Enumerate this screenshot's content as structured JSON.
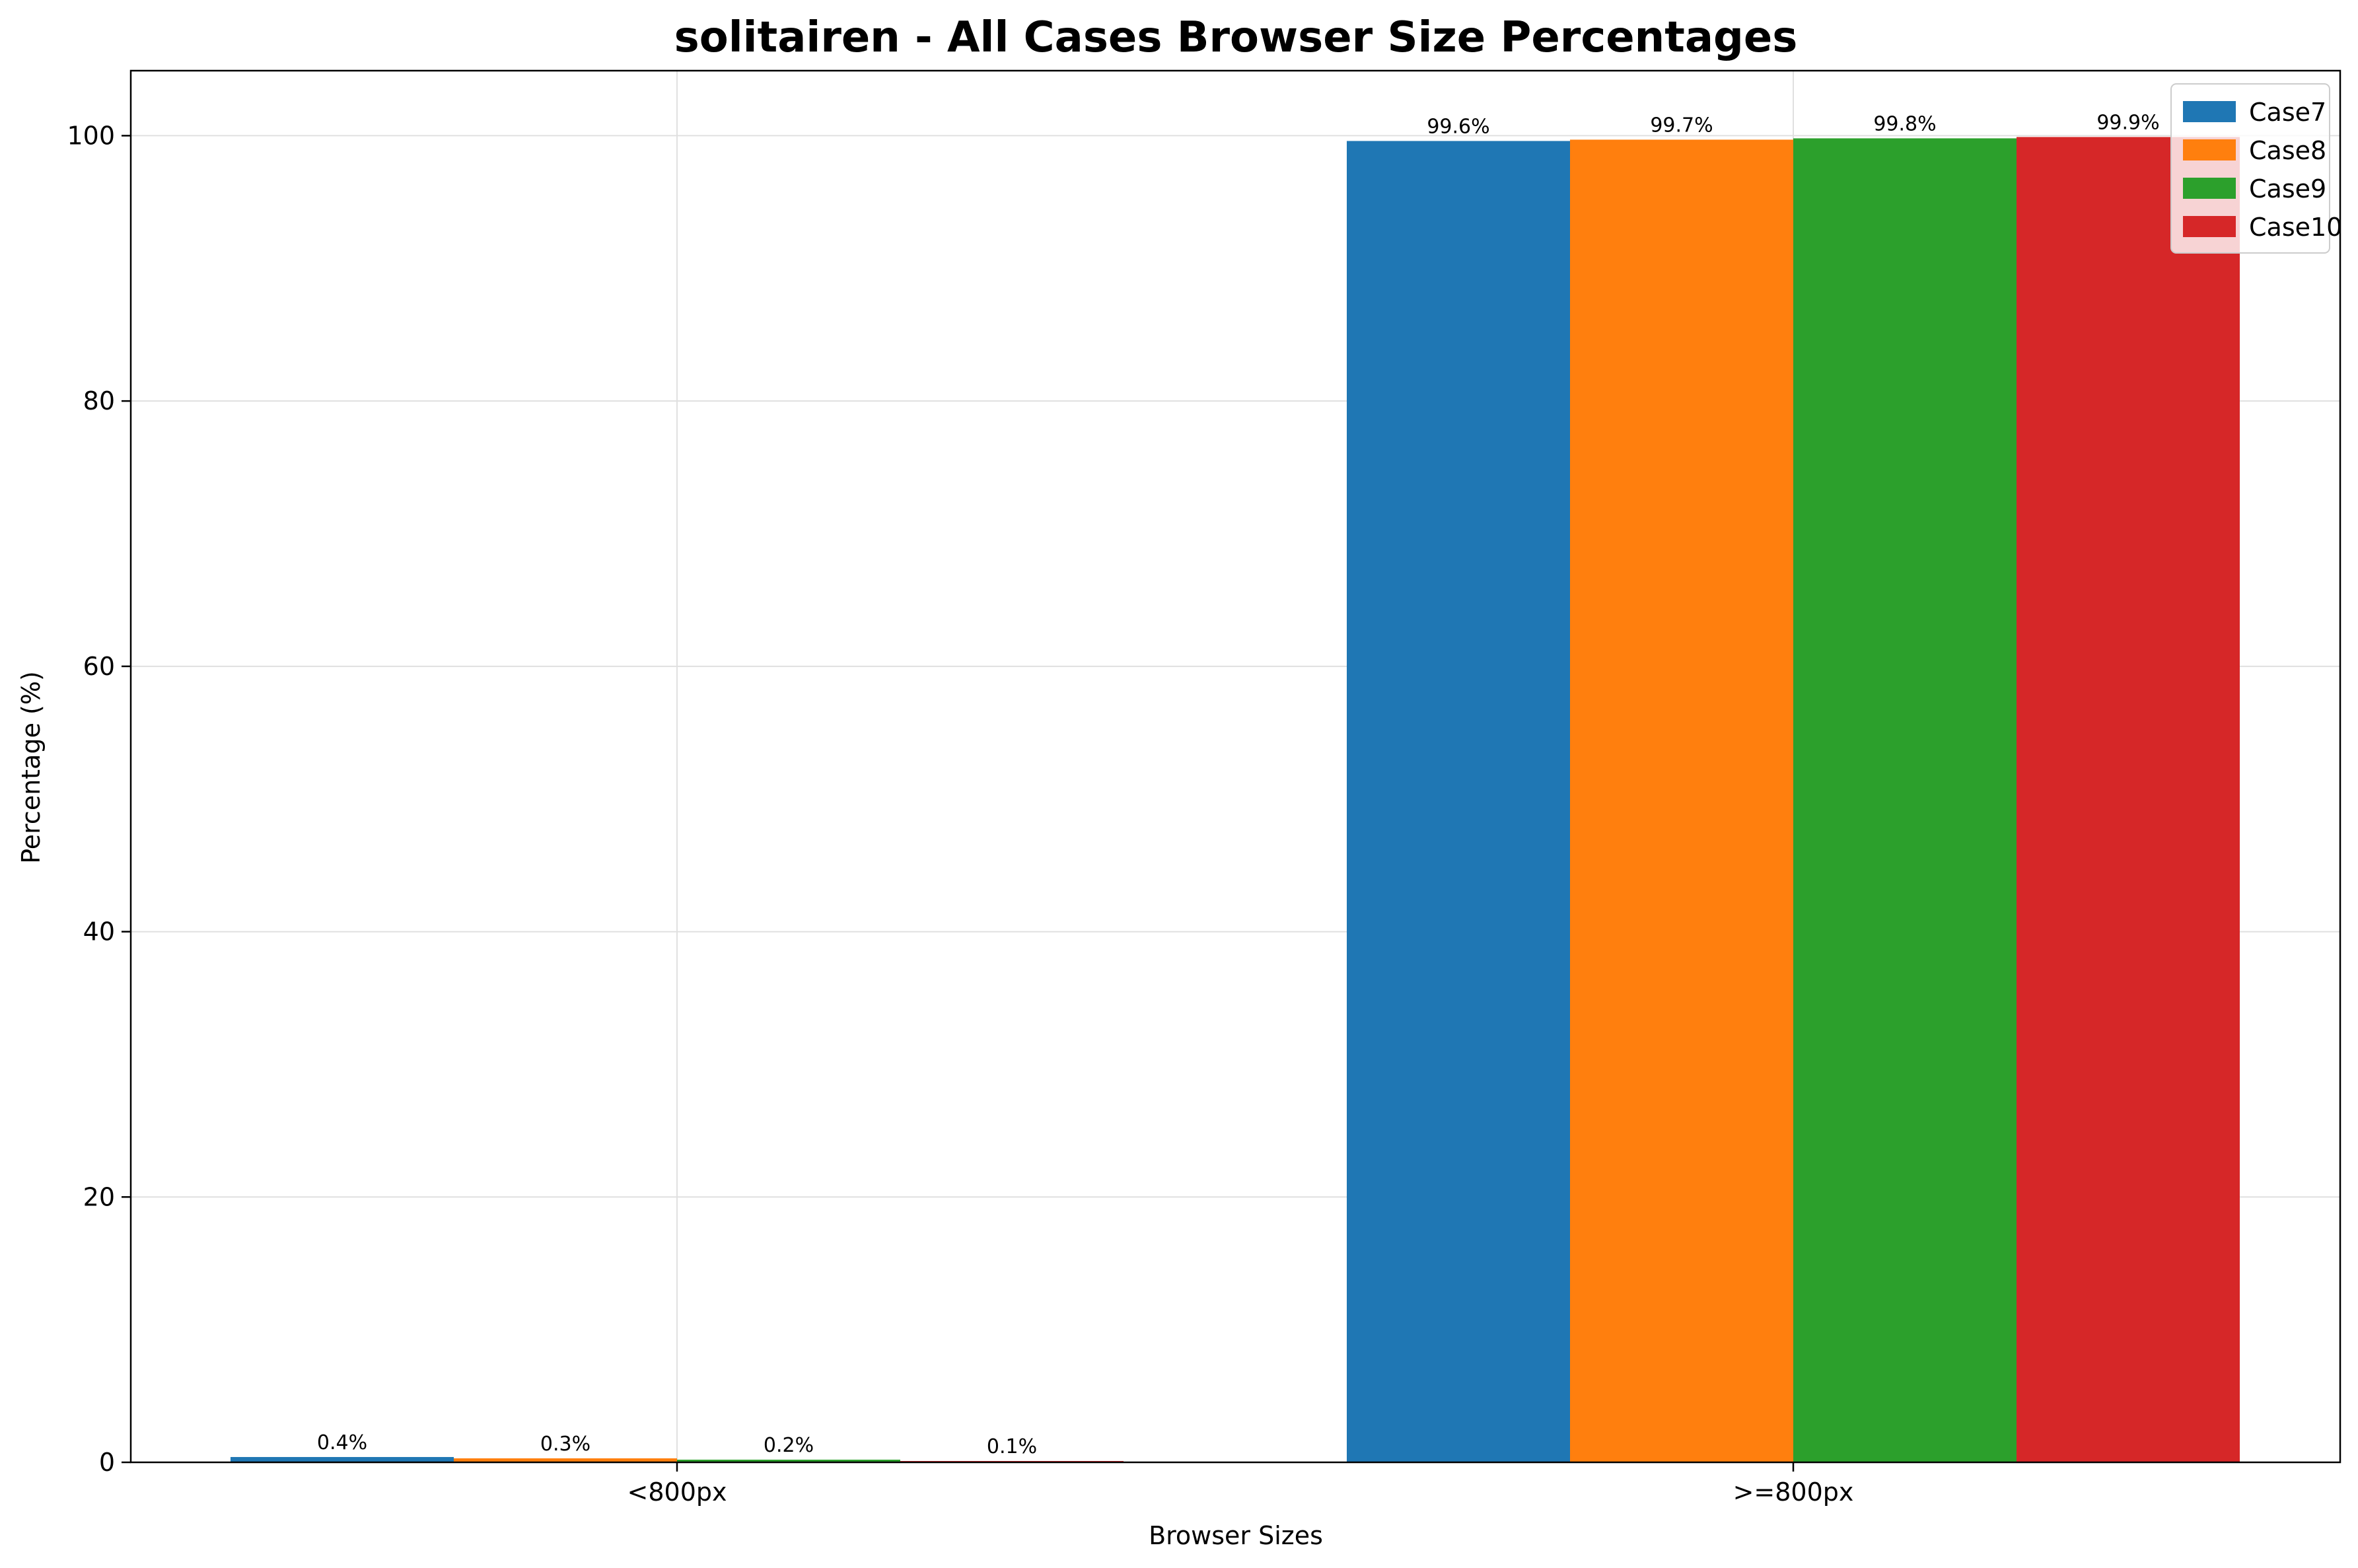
{
  "chart_data": {
    "type": "bar",
    "title": "solitairen - All Cases Browser Size Percentages",
    "xlabel": "Browser Sizes",
    "ylabel": "Percentage (%)",
    "categories": [
      "<800px",
      ">=800px"
    ],
    "series": [
      {
        "name": "Case7",
        "color": "#1f77b4",
        "values": [
          0.4,
          99.6
        ],
        "labels": [
          "0.4%",
          "99.6%"
        ]
      },
      {
        "name": "Case8",
        "color": "#ff7f0e",
        "values": [
          0.3,
          99.7
        ],
        "labels": [
          "0.3%",
          "99.7%"
        ]
      },
      {
        "name": "Case9",
        "color": "#2ca02c",
        "values": [
          0.2,
          99.8
        ],
        "labels": [
          "0.2%",
          "99.8%"
        ]
      },
      {
        "name": "Case10",
        "color": "#d62728",
        "values": [
          0.1,
          99.9
        ],
        "labels": [
          "0.1%",
          "99.9%"
        ]
      }
    ],
    "yticks": [
      0,
      20,
      40,
      60,
      80,
      100
    ],
    "ylim": [
      0,
      104.9
    ],
    "grid": true,
    "legend": "top-right"
  }
}
